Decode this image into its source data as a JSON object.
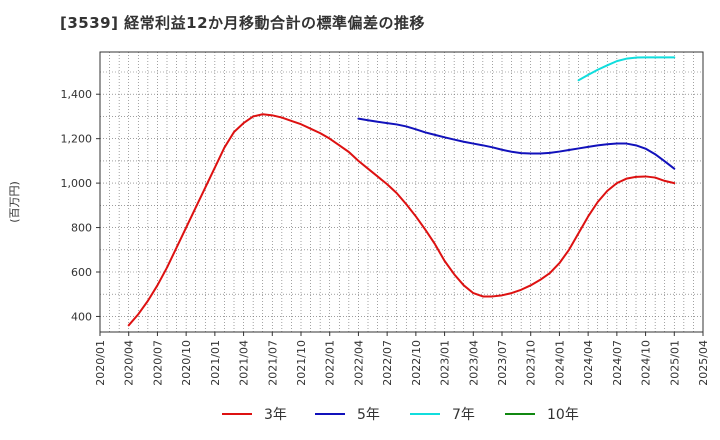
{
  "chart_data": {
    "type": "line",
    "title": "[3539]  経常利益12か月移動合計の標準偏差の推移",
    "xlabel": "",
    "ylabel": "(百万円)",
    "ylim": [
      330,
      1590
    ],
    "y_ticks": [
      400,
      600,
      800,
      1000,
      1200,
      1400
    ],
    "y_tick_labels": [
      "400",
      "600",
      "800",
      "1,000",
      "1,200",
      "1,400"
    ],
    "x_ticks": [
      "2020/01",
      "2020/04",
      "2020/07",
      "2020/10",
      "2021/01",
      "2021/04",
      "2021/07",
      "2021/10",
      "2022/01",
      "2022/04",
      "2022/07",
      "2022/10",
      "2023/01",
      "2023/04",
      "2023/07",
      "2023/10",
      "2024/01",
      "2024/04",
      "2024/07",
      "2024/10",
      "2025/01",
      "2025/04"
    ],
    "grid": true,
    "legend_position": "bottom",
    "series": [
      {
        "name": "3年",
        "color": "#dd1111",
        "x": [
          "2020/04",
          "2020/05",
          "2020/06",
          "2020/07",
          "2020/08",
          "2020/09",
          "2020/10",
          "2020/11",
          "2020/12",
          "2021/01",
          "2021/02",
          "2021/03",
          "2021/04",
          "2021/05",
          "2021/06",
          "2021/07",
          "2021/08",
          "2021/09",
          "2021/10",
          "2021/11",
          "2021/12",
          "2022/01",
          "2022/02",
          "2022/03",
          "2022/04",
          "2022/05",
          "2022/06",
          "2022/07",
          "2022/08",
          "2022/09",
          "2022/10",
          "2022/11",
          "2022/12",
          "2023/01",
          "2023/02",
          "2023/03",
          "2023/04",
          "2023/05",
          "2023/06",
          "2023/07",
          "2023/08",
          "2023/09",
          "2023/10",
          "2023/11",
          "2023/12",
          "2024/01",
          "2024/02",
          "2024/03",
          "2024/04",
          "2024/05",
          "2024/06",
          "2024/07",
          "2024/08",
          "2024/09",
          "2024/10",
          "2024/11",
          "2024/12",
          "2025/01"
        ],
        "values": [
          360,
          410,
          470,
          540,
          620,
          710,
          800,
          890,
          980,
          1070,
          1160,
          1230,
          1270,
          1300,
          1310,
          1305,
          1295,
          1280,
          1265,
          1245,
          1225,
          1200,
          1170,
          1140,
          1100,
          1065,
          1030,
          995,
          955,
          905,
          850,
          790,
          725,
          650,
          590,
          540,
          505,
          490,
          490,
          495,
          505,
          520,
          540,
          565,
          595,
          640,
          700,
          775,
          850,
          915,
          965,
          1000,
          1020,
          1028,
          1030,
          1025,
          1010,
          1000
        ]
      },
      {
        "name": "5年",
        "color": "#1111bb",
        "x": [
          "2022/04",
          "2022/05",
          "2022/06",
          "2022/07",
          "2022/08",
          "2022/09",
          "2022/10",
          "2022/11",
          "2022/12",
          "2023/01",
          "2023/02",
          "2023/03",
          "2023/04",
          "2023/05",
          "2023/06",
          "2023/07",
          "2023/08",
          "2023/09",
          "2023/10",
          "2023/11",
          "2023/12",
          "2024/01",
          "2024/02",
          "2024/03",
          "2024/04",
          "2024/05",
          "2024/06",
          "2024/07",
          "2024/08",
          "2024/09",
          "2024/10",
          "2024/11",
          "2024/12",
          "2025/01"
        ],
        "values": [
          1290,
          1283,
          1276,
          1270,
          1264,
          1255,
          1242,
          1228,
          1217,
          1206,
          1196,
          1186,
          1178,
          1170,
          1161,
          1150,
          1141,
          1135,
          1133,
          1133,
          1136,
          1142,
          1149,
          1156,
          1163,
          1170,
          1175,
          1178,
          1178,
          1170,
          1155,
          1130,
          1098,
          1065
        ]
      },
      {
        "name": "7年",
        "color": "#11dddd",
        "x": [
          "2024/03",
          "2024/04",
          "2024/05",
          "2024/06",
          "2024/07",
          "2024/08",
          "2024/09",
          "2024/10",
          "2024/11",
          "2024/12",
          "2025/01"
        ],
        "values": [
          1463,
          1487,
          1510,
          1530,
          1549,
          1560,
          1565,
          1566,
          1566,
          1566,
          1566
        ]
      },
      {
        "name": "10年",
        "color": "#118811",
        "x": [],
        "values": []
      }
    ]
  }
}
